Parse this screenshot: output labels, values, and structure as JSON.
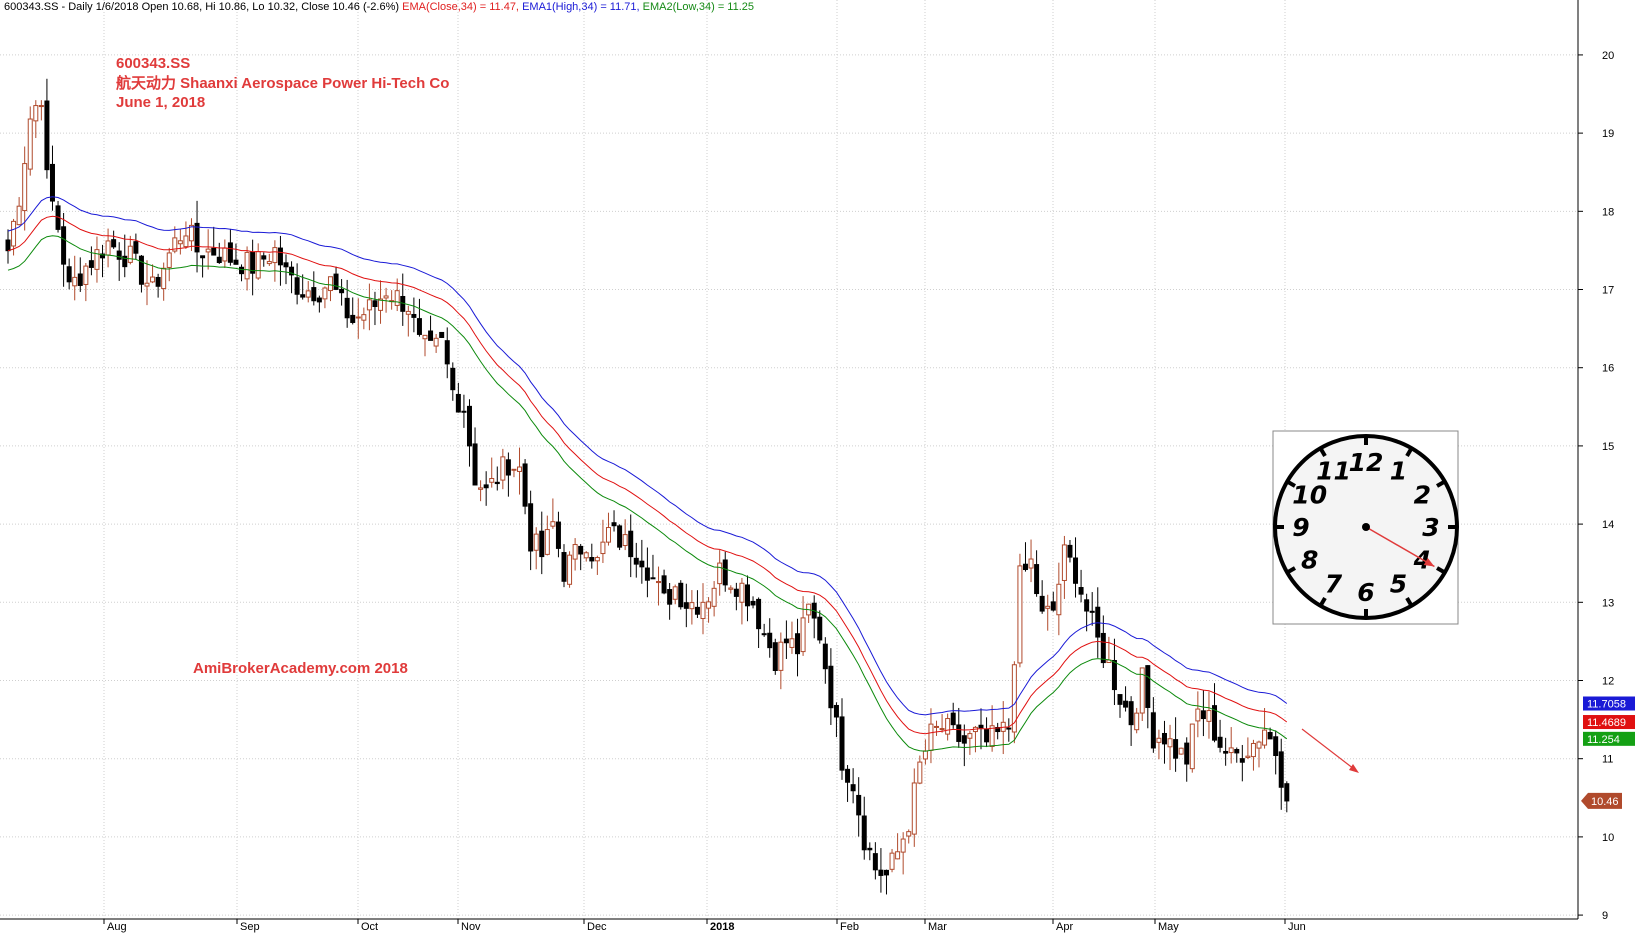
{
  "header": {
    "ticker_info": "600343.SS - Daily 1/6/2018 Open 10.68, Hi 10.86, Lo 10.32, Close 10.46 (-2.6%)",
    "ema_close": "EMA(Close,34) = 11.47,",
    "ema_high": "EMA1(High,34) = 11.71,",
    "ema_low": "EMA2(Low,34) = 11.25"
  },
  "annotation": {
    "symbol": "600343.SS",
    "company": "航天动力 Shaanxi Aerospace Power Hi-Tech Co",
    "date": "June 1, 2018",
    "watermark": "AmiBrokerAcademy.com  2018"
  },
  "price_tags": {
    "ema_high": {
      "label": "11.7058",
      "value": 11.7058,
      "color": "#1a1ad6"
    },
    "ema_close": {
      "label": "11.4689",
      "value": 11.4689,
      "color": "#e01010"
    },
    "ema_low": {
      "label": "11.254",
      "value": 11.254,
      "color": "#14a014"
    },
    "close": {
      "label": "10.46",
      "value": 10.46,
      "color": "#b04a2c"
    }
  },
  "colors": {
    "up_candle": "#b04a2c",
    "down_candle": "#000000",
    "ema_close": "#e01010",
    "ema_high": "#1a1ad6",
    "ema_low": "#0c8a0c",
    "grid": "#cfcfcf",
    "annotation": "#e03b3b"
  },
  "clock": {
    "numbers": [
      "12",
      "1",
      "2",
      "3",
      "4",
      "5",
      "6",
      "7",
      "8",
      "9",
      "10",
      "11"
    ],
    "hand_hour": 4
  },
  "chart_data": {
    "type": "candlestick",
    "ylim": [
      8.95,
      20.6
    ],
    "yticks": [
      9,
      10,
      11,
      12,
      13,
      14,
      15,
      16,
      17,
      18,
      19,
      20
    ],
    "x_axis": [
      {
        "label": "Aug",
        "bold": false
      },
      {
        "label": "Sep",
        "bold": false
      },
      {
        "label": "Oct",
        "bold": false
      },
      {
        "label": "Nov",
        "bold": false
      },
      {
        "label": "Dec",
        "bold": false
      },
      {
        "label": "2018",
        "bold": true
      },
      {
        "label": "Feb",
        "bold": false
      },
      {
        "label": "Mar",
        "bold": false
      },
      {
        "label": "Apr",
        "bold": false
      },
      {
        "label": "May",
        "bold": false
      },
      {
        "label": "Jun",
        "bold": false
      }
    ],
    "series": [
      {
        "name": "EMA(Close,34)",
        "last": 11.47
      },
      {
        "name": "EMA1(High,34)",
        "last": 11.71
      },
      {
        "name": "EMA2(Low,34)",
        "last": 11.25
      }
    ],
    "close_path": [
      [
        0,
        17.5
      ],
      [
        2,
        18.2
      ],
      [
        4,
        19.2
      ],
      [
        6,
        19.5
      ],
      [
        7,
        18.4
      ],
      [
        9,
        17.8
      ],
      [
        11,
        17.0
      ],
      [
        14,
        17.3
      ],
      [
        18,
        17.6
      ],
      [
        22,
        17.4
      ],
      [
        24,
        17.2
      ],
      [
        26,
        17.0
      ],
      [
        30,
        17.6
      ],
      [
        32,
        17.8
      ],
      [
        34,
        17.5
      ],
      [
        37,
        17.5
      ],
      [
        40,
        17.4
      ],
      [
        44,
        17.3
      ],
      [
        48,
        17.5
      ],
      [
        50,
        17.2
      ],
      [
        53,
        17.0
      ],
      [
        56,
        17.0
      ],
      [
        58,
        17.1
      ],
      [
        60,
        16.8
      ],
      [
        62,
        16.6
      ],
      [
        64,
        16.7
      ],
      [
        66,
        16.8
      ],
      [
        68,
        17.0
      ],
      [
        70,
        16.9
      ],
      [
        72,
        16.8
      ],
      [
        74,
        16.3
      ],
      [
        76,
        16.2
      ],
      [
        78,
        16.3
      ],
      [
        80,
        15.7
      ],
      [
        82,
        15.5
      ],
      [
        84,
        14.6
      ],
      [
        86,
        14.4
      ],
      [
        88,
        14.6
      ],
      [
        90,
        14.8
      ],
      [
        92,
        14.7
      ],
      [
        94,
        13.8
      ],
      [
        96,
        13.6
      ],
      [
        98,
        14.0
      ],
      [
        100,
        13.4
      ],
      [
        102,
        13.6
      ],
      [
        104,
        13.8
      ],
      [
        106,
        13.5
      ],
      [
        108,
        13.9
      ],
      [
        110,
        13.8
      ],
      [
        112,
        13.7
      ],
      [
        114,
        13.6
      ],
      [
        116,
        13.3
      ],
      [
        118,
        13.0
      ],
      [
        120,
        13.2
      ],
      [
        122,
        13.0
      ],
      [
        124,
        13.0
      ],
      [
        126,
        13.1
      ],
      [
        128,
        13.4
      ],
      [
        130,
        13.3
      ],
      [
        132,
        13.2
      ],
      [
        134,
        13.0
      ],
      [
        136,
        12.6
      ],
      [
        138,
        12.3
      ],
      [
        140,
        12.5
      ],
      [
        142,
        12.4
      ],
      [
        144,
        12.9
      ],
      [
        146,
        12.6
      ],
      [
        148,
        11.8
      ],
      [
        150,
        11.0
      ],
      [
        152,
        10.7
      ],
      [
        154,
        10.0
      ],
      [
        156,
        9.6
      ],
      [
        158,
        9.5
      ],
      [
        160,
        9.8
      ],
      [
        162,
        10.2
      ],
      [
        164,
        10.9
      ],
      [
        166,
        11.3
      ],
      [
        168,
        11.4
      ],
      [
        170,
        11.3
      ],
      [
        172,
        11.2
      ],
      [
        174,
        11.3
      ],
      [
        176,
        11.2
      ],
      [
        178,
        11.3
      ],
      [
        180,
        11.4
      ],
      [
        182,
        13.3
      ],
      [
        184,
        13.5
      ],
      [
        186,
        12.8
      ],
      [
        188,
        12.9
      ],
      [
        190,
        13.6
      ],
      [
        192,
        13.4
      ],
      [
        194,
        12.9
      ],
      [
        196,
        12.5
      ],
      [
        198,
        12.2
      ],
      [
        200,
        11.8
      ],
      [
        202,
        11.5
      ],
      [
        204,
        12.0
      ],
      [
        206,
        11.3
      ],
      [
        208,
        11.3
      ],
      [
        210,
        11.1
      ],
      [
        212,
        11.0
      ],
      [
        214,
        11.6
      ],
      [
        216,
        11.5
      ],
      [
        218,
        11.2
      ],
      [
        220,
        11.0
      ],
      [
        222,
        11.1
      ],
      [
        224,
        11.2
      ],
      [
        226,
        11.4
      ],
      [
        228,
        11.1
      ],
      [
        230,
        10.5
      ]
    ]
  }
}
